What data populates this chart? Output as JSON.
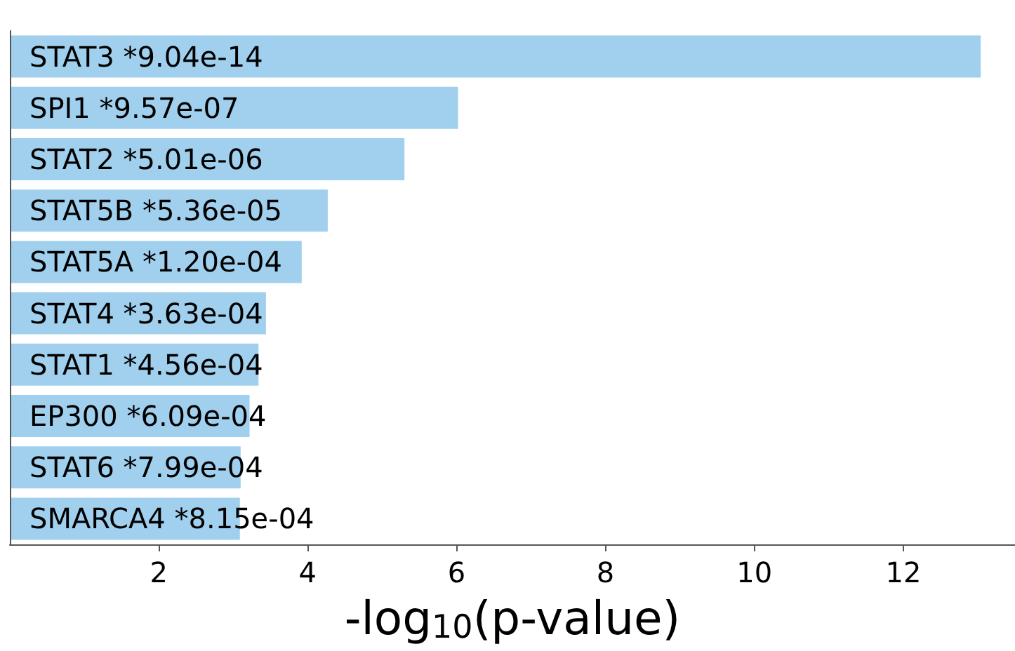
{
  "chart_data": {
    "type": "bar",
    "orientation": "horizontal",
    "categories": [
      "STAT3 *9.04e-14",
      "SPI1 *9.57e-07",
      "STAT2 *5.01e-06",
      "STAT5B *5.36e-05",
      "STAT5A *1.20e-04",
      "STAT4 *3.63e-04",
      "STAT1 *4.56e-04",
      "EP300 *6.09e-04",
      "STAT6 *7.99e-04",
      "SMARCA4 *8.15e-04"
    ],
    "values": [
      13.04,
      6.02,
      5.3,
      4.27,
      3.92,
      3.44,
      3.34,
      3.22,
      3.1,
      3.09
    ],
    "color": "#a0d0ee",
    "xlabel": "-log$_{10}$(p-value)",
    "xlim": [
      0,
      13.5
    ],
    "xticks": [
      2,
      4,
      6,
      8,
      10,
      12
    ],
    "grid": false
  }
}
